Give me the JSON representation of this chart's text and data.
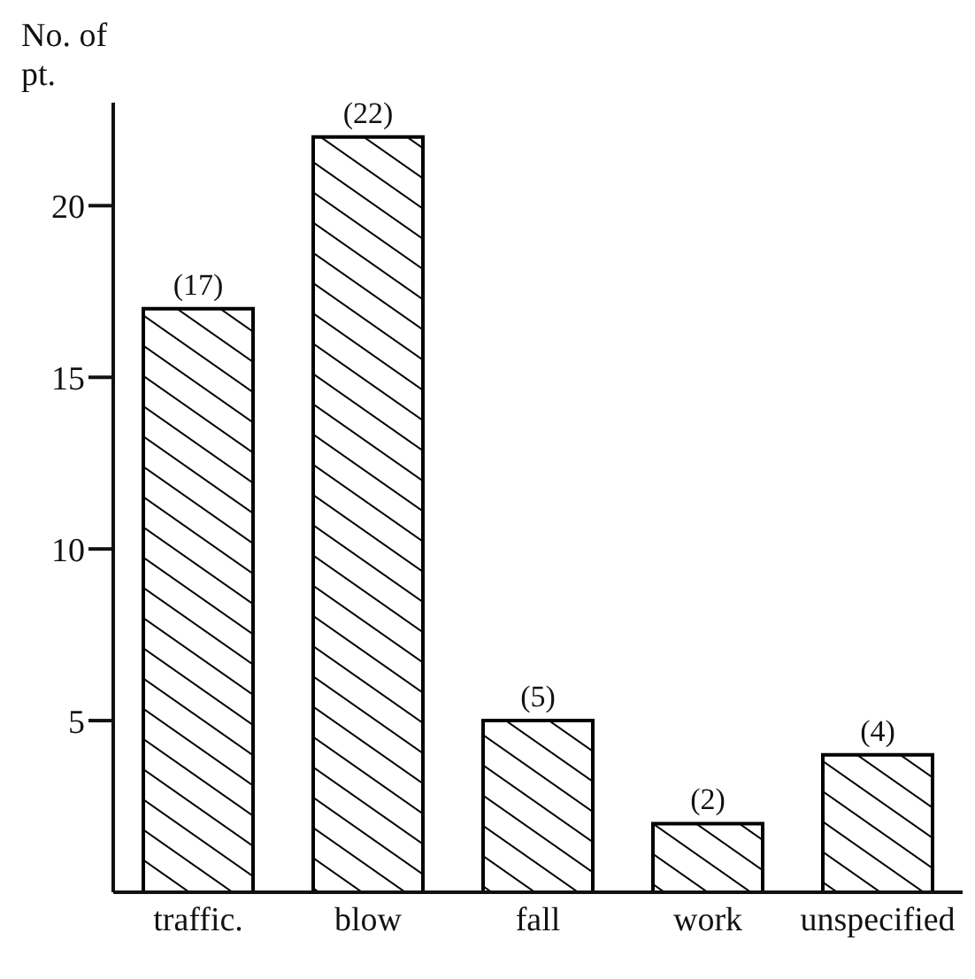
{
  "chart_data": {
    "type": "bar",
    "ylabel": "No. of pt.",
    "categories": [
      "traffic.",
      "blow",
      "fall",
      "work",
      "unspecified"
    ],
    "values": [
      17,
      22,
      5,
      2,
      4
    ],
    "value_labels": [
      "(17)",
      "(22)",
      "(5)",
      "(2)",
      "(4)"
    ],
    "color": "#000000",
    "ylim": [
      0,
      23
    ],
    "yticks": [
      5,
      10,
      15,
      20
    ],
    "grid": false
  }
}
